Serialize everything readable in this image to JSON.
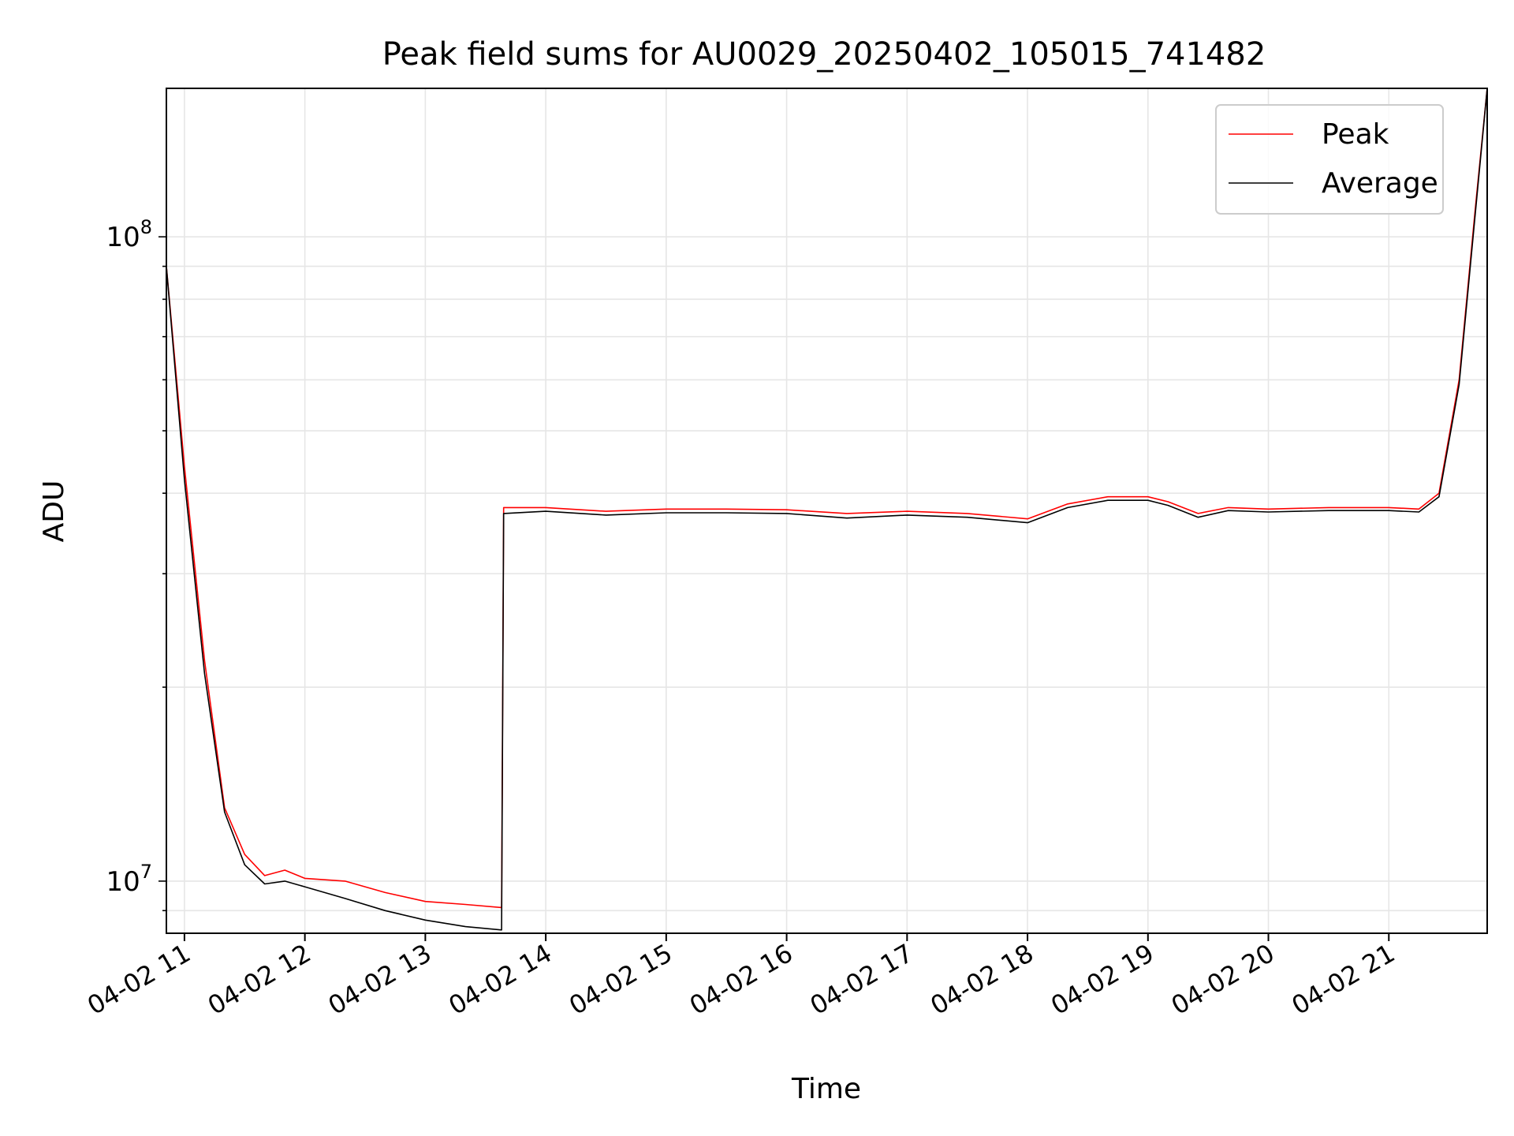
{
  "chart_data": {
    "type": "line",
    "title": "Peak field sums for AU0029_20250402_105015_741482",
    "xlabel": "Time",
    "ylabel": "ADU",
    "y_scale": "log",
    "ylim": [
      8300000,
      170000000
    ],
    "xlim": [
      "04-02 10:51",
      "04-02 21:49"
    ],
    "grid": true,
    "legend_position": "top-right",
    "x_ticks": [
      "04-02 11",
      "04-02 12",
      "04-02 13",
      "04-02 14",
      "04-02 15",
      "04-02 16",
      "04-02 17",
      "04-02 18",
      "04-02 19",
      "04-02 20",
      "04-02 21"
    ],
    "y_ticks": [
      {
        "value": 10000000,
        "base": "10",
        "exp": "7"
      },
      {
        "value": 100000000,
        "base": "10",
        "exp": "8"
      }
    ],
    "x": [
      "04-02 10:51",
      "04-02 11:00",
      "04-02 11:10",
      "04-02 11:20",
      "04-02 11:30",
      "04-02 11:40",
      "04-02 11:50",
      "04-02 12:00",
      "04-02 12:20",
      "04-02 12:40",
      "04-02 13:00",
      "04-02 13:20",
      "04-02 13:38",
      "04-02 13:39",
      "04-02 14:00",
      "04-02 14:30",
      "04-02 15:00",
      "04-02 15:30",
      "04-02 16:00",
      "04-02 16:30",
      "04-02 17:00",
      "04-02 17:30",
      "04-02 18:00",
      "04-02 18:20",
      "04-02 18:40",
      "04-02 19:00",
      "04-02 19:10",
      "04-02 19:25",
      "04-02 19:40",
      "04-02 20:00",
      "04-02 20:30",
      "04-02 21:00",
      "04-02 21:15",
      "04-02 21:25",
      "04-02 21:35",
      "04-02 21:43",
      "04-02 21:49"
    ],
    "series": [
      {
        "name": "Peak",
        "color": "#ff0000",
        "values": [
          90000000,
          44000000,
          22000000,
          13000000,
          11000000,
          10200000,
          10400000,
          10100000,
          10000000,
          9600000,
          9300000,
          9200000,
          9100000,
          38000000,
          38000000,
          37500000,
          37800000,
          37800000,
          37700000,
          37200000,
          37500000,
          37200000,
          36500000,
          38500000,
          39500000,
          39500000,
          38800000,
          37200000,
          38000000,
          37800000,
          38000000,
          38000000,
          37800000,
          40000000,
          60000000,
          110000000,
          170000000
        ]
      },
      {
        "name": "Average",
        "color": "#000000",
        "values": [
          90000000,
          42000000,
          21000000,
          12800000,
          10600000,
          9900000,
          10000000,
          9800000,
          9400000,
          9000000,
          8700000,
          8500000,
          8400000,
          37200000,
          37500000,
          37000000,
          37300000,
          37300000,
          37200000,
          36600000,
          37000000,
          36700000,
          36000000,
          38000000,
          39000000,
          39000000,
          38300000,
          36700000,
          37600000,
          37400000,
          37600000,
          37600000,
          37400000,
          39500000,
          59000000,
          108000000,
          170000000
        ]
      }
    ]
  }
}
